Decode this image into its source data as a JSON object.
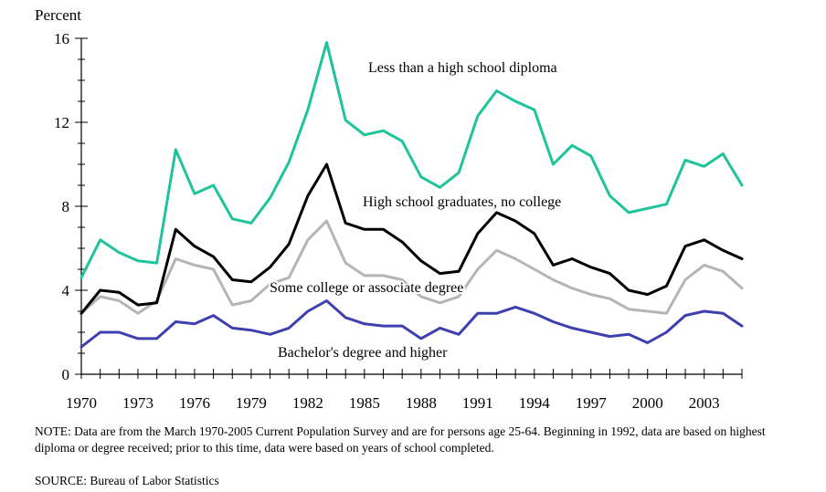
{
  "chart_data": {
    "type": "line",
    "ylabel": "Percent",
    "ylim": [
      0,
      16
    ],
    "yticks": [
      0,
      4,
      8,
      12,
      16
    ],
    "xlim": [
      1970,
      2005
    ],
    "xtick_labels": [
      "1970",
      "1973",
      "1976",
      "1979",
      "1982",
      "1985",
      "1988",
      "1991",
      "1994",
      "1997",
      "2000",
      "2003"
    ],
    "x": [
      1970,
      1971,
      1972,
      1973,
      1974,
      1975,
      1976,
      1977,
      1978,
      1979,
      1980,
      1981,
      1982,
      1983,
      1984,
      1985,
      1986,
      1987,
      1988,
      1989,
      1990,
      1991,
      1992,
      1993,
      1994,
      1995,
      1996,
      1997,
      1998,
      1999,
      2000,
      2001,
      2002,
      2003,
      2004,
      2005
    ],
    "series": [
      {
        "name": "Less than a high school diploma",
        "color": "#1fc49a",
        "values": [
          4.6,
          6.4,
          5.8,
          5.4,
          5.3,
          10.7,
          8.6,
          9.0,
          7.4,
          7.2,
          8.4,
          10.1,
          12.6,
          15.8,
          12.1,
          11.4,
          11.6,
          11.1,
          9.4,
          8.9,
          9.6,
          12.3,
          13.5,
          13.0,
          12.6,
          10.0,
          10.9,
          10.4,
          8.5,
          7.7,
          7.9,
          8.1,
          10.2,
          9.9,
          10.5,
          9.0
        ]
      },
      {
        "name": "High school graduates, no college",
        "color": "#000000",
        "values": [
          2.9,
          4.0,
          3.9,
          3.3,
          3.4,
          6.9,
          6.1,
          5.6,
          4.5,
          4.4,
          5.1,
          6.2,
          8.5,
          10.0,
          7.2,
          6.9,
          6.9,
          6.3,
          5.4,
          4.8,
          4.9,
          6.7,
          7.7,
          7.3,
          6.7,
          5.2,
          5.5,
          5.1,
          4.8,
          4.0,
          3.8,
          4.2,
          6.1,
          6.4,
          5.9,
          5.5
        ]
      },
      {
        "name": "Some college or associate degree",
        "color": "#b5b5b5",
        "values": [
          2.9,
          3.7,
          3.5,
          2.9,
          3.5,
          5.5,
          5.2,
          5.0,
          3.3,
          3.5,
          4.3,
          4.6,
          6.4,
          7.3,
          5.3,
          4.7,
          4.7,
          4.5,
          3.7,
          3.4,
          3.7,
          5.0,
          5.9,
          5.5,
          5.0,
          4.5,
          4.1,
          3.8,
          3.6,
          3.1,
          3.0,
          2.9,
          4.5,
          5.2,
          4.9,
          4.1
        ]
      },
      {
        "name": "Bachelor's degree and higher",
        "color": "#3f3fb0",
        "values": [
          1.3,
          2.0,
          2.0,
          1.7,
          1.7,
          2.5,
          2.4,
          2.8,
          2.2,
          2.1,
          1.9,
          2.2,
          3.0,
          3.5,
          2.7,
          2.4,
          2.3,
          2.3,
          1.7,
          2.2,
          1.9,
          2.9,
          2.9,
          3.2,
          2.9,
          2.5,
          2.2,
          2.0,
          1.8,
          1.9,
          1.5,
          2.0,
          2.8,
          3.0,
          2.9,
          2.3
        ]
      }
    ],
    "annotations": [
      {
        "text": "Less than a high school diploma",
        "series": 0
      },
      {
        "text": "High school graduates, no college",
        "series": 1
      },
      {
        "text": "Some college or associate degree",
        "series": 2
      },
      {
        "text": "Bachelor's degree and higher",
        "series": 3
      }
    ],
    "grid": false,
    "legend": "none"
  },
  "note": "NOTE:  Data are from the March 1970-2005 Current Population Survey and are for persons age 25-64.  Beginning in 1992, data are based on highest diploma or degree received; prior to this time, data were based on years of school completed.",
  "source": "SOURCE:  Bureau of Labor Statistics"
}
